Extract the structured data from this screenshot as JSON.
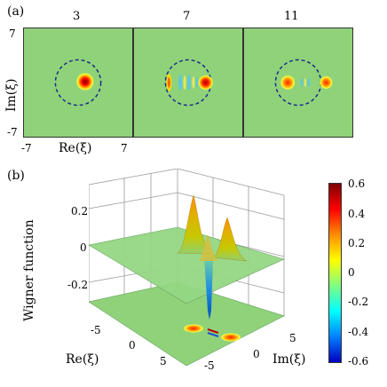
{
  "part_a": {
    "label": "(a)",
    "panels": [
      {
        "title": "3"
      },
      {
        "title": "7"
      },
      {
        "title": "11"
      }
    ],
    "y_axis_label": "Im(ξ)",
    "x_axis_label": "Re(ξ)",
    "y_ticks": [
      "7",
      "-7"
    ],
    "x_ticks": [
      "-7",
      "7"
    ]
  },
  "part_b": {
    "label": "(b)",
    "z_axis_label": "Wigner function",
    "z_ticks": [
      "0.2",
      "0",
      "-0.2"
    ],
    "re_axis_label": "Re(ξ)",
    "re_ticks": [
      "-5",
      "0",
      "5"
    ],
    "im_axis_label": "Im(ξ)",
    "im_ticks": [
      "-5",
      "0",
      "5"
    ]
  },
  "colorbar": {
    "ticks": [
      "0.6",
      "0.4",
      "0.2",
      "0",
      "-0.2",
      "-0.4",
      "-0.6"
    ],
    "colors": [
      "#7f0000",
      "#ff0000",
      "#ff8c00",
      "#ffff00",
      "#80ff80",
      "#00ffff",
      "#0080ff",
      "#0000c0"
    ]
  }
}
